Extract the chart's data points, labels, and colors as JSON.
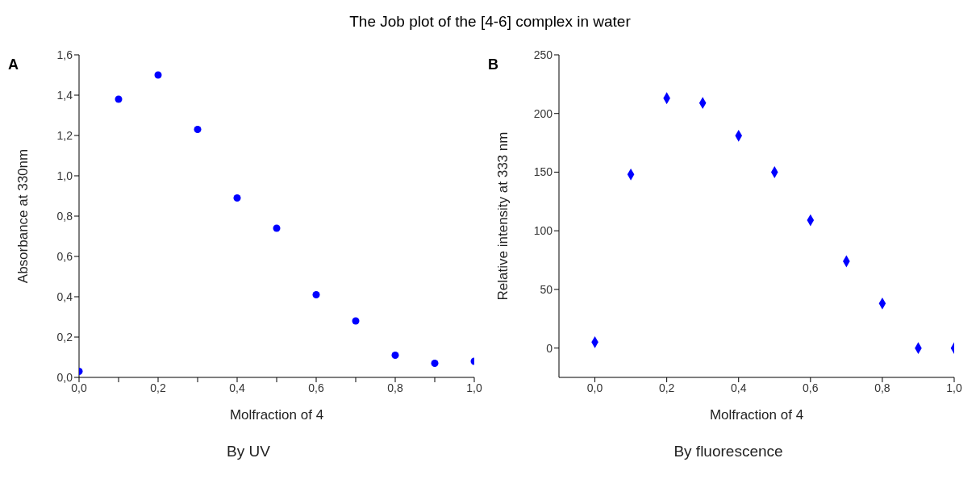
{
  "chart_data": [
    {
      "type": "scatter",
      "title": "The Job plot of the [4-6] complex in water",
      "xlabel": "Molfraction of 4",
      "ylabel": "Absorbance at 330nm",
      "annotations": [
        "A",
        "By UV"
      ],
      "marker": "circle",
      "grid": false,
      "legend": false,
      "x": [
        0,
        0.1,
        0.2,
        0.3,
        0.4,
        0.5,
        0.6,
        0.7,
        0.8,
        0.9,
        1.0
      ],
      "series": [
        {
          "color": "#0000ff",
          "values": [
            0.03,
            1.38,
            1.5,
            1.23,
            0.89,
            0.74,
            0.41,
            0.28,
            0.11,
            0.07,
            0.08
          ]
        }
      ],
      "xlim": [
        0,
        1
      ],
      "xticks": [
        {
          "value": 0,
          "label": "0,0"
        },
        {
          "value": 0.1,
          "label": null
        },
        {
          "value": 0.2,
          "label": "0,2"
        },
        {
          "value": 0.3,
          "label": null
        },
        {
          "value": 0.4,
          "label": "0,4"
        },
        {
          "value": 0.5,
          "label": null
        },
        {
          "value": 0.6,
          "label": "0,6"
        },
        {
          "value": 0.7,
          "label": null
        },
        {
          "value": 0.8,
          "label": "0,8"
        },
        {
          "value": 0.9,
          "label": null
        },
        {
          "value": 1,
          "label": "1,0"
        }
      ],
      "ylim": [
        0,
        1.6
      ],
      "yticks": [
        {
          "value": 0,
          "label": "0,0"
        },
        {
          "value": 0.2,
          "label": "0,2"
        },
        {
          "value": 0.4,
          "label": "0,4"
        },
        {
          "value": 0.6,
          "label": "0,6"
        },
        {
          "value": 0.8,
          "label": "0,8"
        },
        {
          "value": 1.0,
          "label": "1,0"
        },
        {
          "value": 1.2,
          "label": "1,2"
        },
        {
          "value": 1.4,
          "label": "1,4"
        },
        {
          "value": 1.6,
          "label": "1,6"
        }
      ]
    },
    {
      "type": "scatter",
      "xlabel": "Molfraction of 4",
      "ylabel": "Relative intensity at 333 nm",
      "annotations": [
        "B",
        "By fluorescence"
      ],
      "marker": "diamond",
      "grid": false,
      "legend": false,
      "x": [
        0,
        0.1,
        0.2,
        0.3,
        0.4,
        0.5,
        0.6,
        0.7,
        0.8,
        0.9,
        1.0
      ],
      "series": [
        {
          "color": "#0000ff",
          "values": [
            5,
            148,
            213,
            209,
            181,
            150,
            109,
            74,
            38,
            0,
            0
          ]
        }
      ],
      "xlim": [
        -0.1,
        1
      ],
      "xticks": [
        {
          "value": 0,
          "label": "0,0"
        },
        {
          "value": 0.2,
          "label": "0,2"
        },
        {
          "value": 0.4,
          "label": "0,4"
        },
        {
          "value": 0.6,
          "label": "0,6"
        },
        {
          "value": 0.8,
          "label": "0,8"
        },
        {
          "value": 1,
          "label": "1,0"
        }
      ],
      "ylim": [
        -25,
        250
      ],
      "yticks": [
        0,
        50,
        100,
        150,
        200,
        250
      ]
    }
  ]
}
